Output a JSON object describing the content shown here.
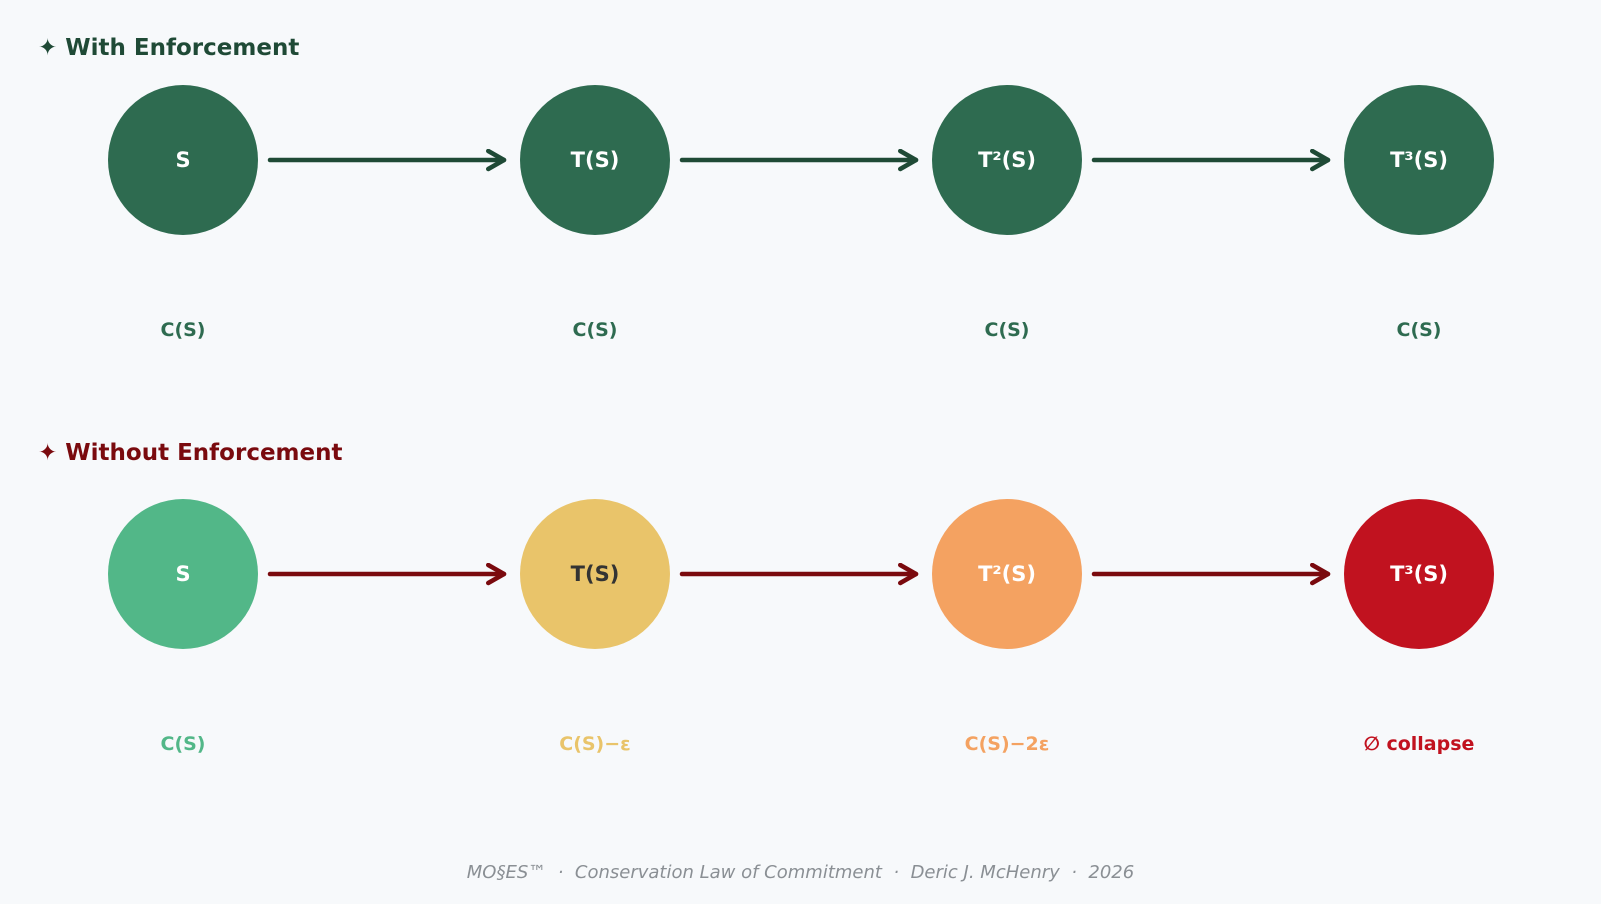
{
  "rows": [
    {
      "title": "With Enforcement",
      "star": "✦",
      "title_color": "#1f4a36",
      "arrow_color": "#1f4a36",
      "nodes": [
        {
          "label": "S",
          "fill": "#2e6b50",
          "text_color": "#ffffff",
          "state": "C(S)",
          "state_color": "#2e6b50"
        },
        {
          "label": "T(S)",
          "fill": "#2e6b50",
          "text_color": "#ffffff",
          "state": "C(S)",
          "state_color": "#2e6b50"
        },
        {
          "label": "T²(S)",
          "fill": "#2e6b50",
          "text_color": "#ffffff",
          "state": "C(S)",
          "state_color": "#2e6b50"
        },
        {
          "label": "T³(S)",
          "fill": "#2e6b50",
          "text_color": "#ffffff",
          "state": "C(S)",
          "state_color": "#2e6b50"
        }
      ]
    },
    {
      "title": "Without Enforcement",
      "star": "✦",
      "title_color": "#7a0a0e",
      "arrow_color": "#7a0a0e",
      "nodes": [
        {
          "label": "S",
          "fill": "#52b788",
          "text_color": "#ffffff",
          "state": "C(S)",
          "state_color": "#52b788"
        },
        {
          "label": "T(S)",
          "fill": "#e9c46a",
          "text_color": "#333333",
          "state": "C(S)−ε",
          "state_color": "#e9c46a"
        },
        {
          "label": "T²(S)",
          "fill": "#f4a261",
          "text_color": "#ffffff",
          "state": "C(S)−2ε",
          "state_color": "#f4a261"
        },
        {
          "label": "T³(S)",
          "fill": "#c1121f",
          "text_color": "#ffffff",
          "state": "∅ collapse",
          "state_color": "#c1121f"
        }
      ]
    }
  ],
  "footer": "MO§ES™  ·  Conservation Law of Commitment  ·  Deric J. McHenry  ·  2026"
}
